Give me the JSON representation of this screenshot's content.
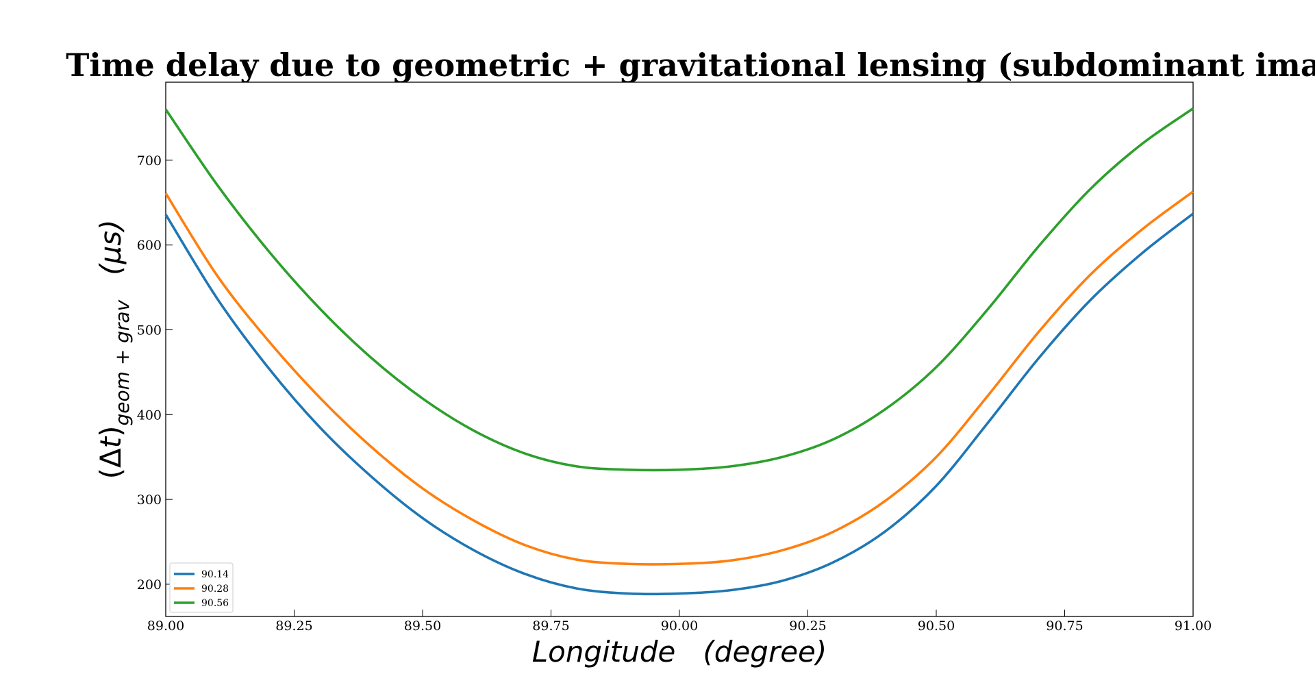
{
  "chart_data": {
    "type": "line",
    "title": "Time delay due to geometric + gravitational lensing (subdominant image)",
    "xlabel": "Longitude   (degree)",
    "ylabel": "(Δt)geom + grav   (μs)",
    "ylabel_parts": {
      "open": "(Δ",
      "t": "t",
      "close": ")",
      "subscript": "geom + grav",
      "unit": "(μs)"
    },
    "xlim": [
      89.0,
      91.0
    ],
    "ylim": [
      162,
      792
    ],
    "xticks": [
      89.0,
      89.25,
      89.5,
      89.75,
      90.0,
      90.25,
      90.5,
      90.75,
      91.0
    ],
    "xtick_labels": [
      "89.00",
      "89.25",
      "89.50",
      "89.75",
      "90.00",
      "90.25",
      "90.50",
      "90.75",
      "91.00"
    ],
    "yticks": [
      200,
      300,
      400,
      500,
      600,
      700
    ],
    "ytick_labels": [
      "200",
      "300",
      "400",
      "500",
      "600",
      "700"
    ],
    "grid": false,
    "legend_position": "lower-left",
    "x": [
      89.0,
      89.1,
      89.2,
      89.3,
      89.4,
      89.5,
      89.6,
      89.7,
      89.8,
      89.9,
      90.0,
      90.1,
      90.2,
      90.3,
      90.4,
      90.5,
      90.6,
      90.7,
      90.8,
      90.9,
      91.0
    ],
    "series": [
      {
        "name": "90.14",
        "color": "#1f77b4",
        "values": [
          636,
          537,
          455,
          385,
          327,
          278,
          240,
          212,
          195,
          189,
          189,
          193,
          204,
          226,
          262,
          316,
          390,
          467,
          535,
          590,
          637
        ]
      },
      {
        "name": "90.28",
        "color": "#ff7f0e",
        "values": [
          661,
          564,
          487,
          420,
          362,
          313,
          275,
          246,
          229,
          224,
          224,
          228,
          240,
          262,
          298,
          350,
          422,
          498,
          565,
          618,
          663
        ]
      },
      {
        "name": "90.56",
        "color": "#2ca02c",
        "values": [
          760,
          671,
          593,
          525,
          467,
          419,
          381,
          354,
          339,
          335,
          335,
          339,
          350,
          371,
          406,
          456,
          524,
          599,
          666,
          719,
          761
        ]
      }
    ]
  }
}
